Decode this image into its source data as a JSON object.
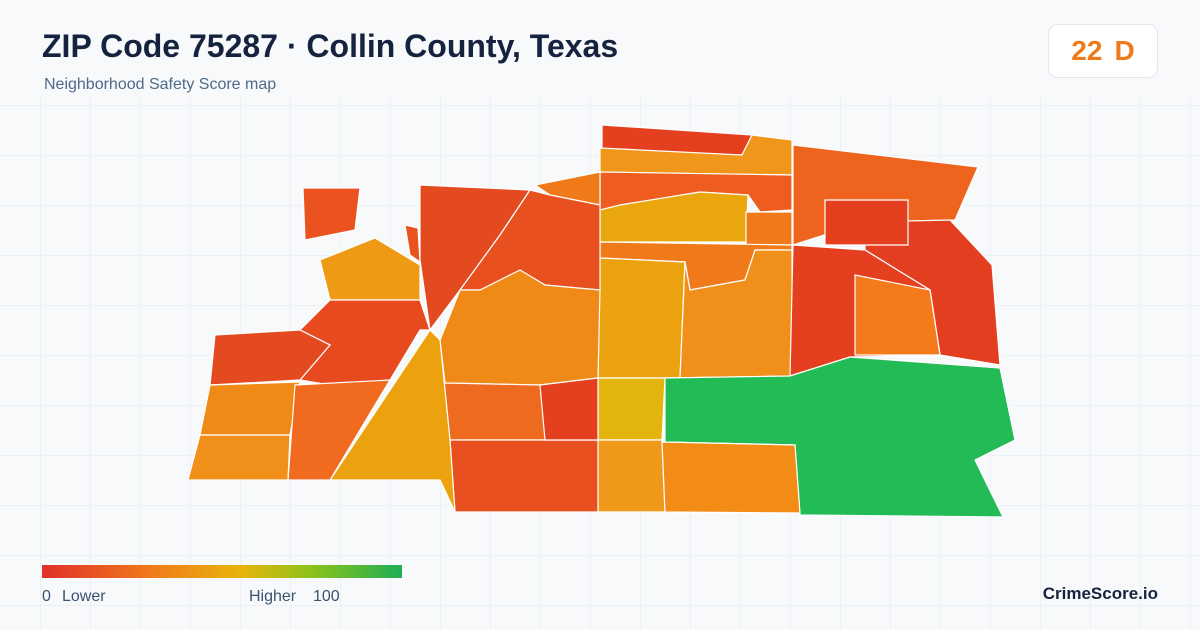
{
  "header": {
    "title": "ZIP Code 75287 · Collin County, Texas",
    "subtitle": "Neighborhood Safety Score map"
  },
  "score": {
    "value": 22,
    "grade": "D"
  },
  "legend": {
    "min": 0,
    "min_label": "Lower",
    "max_label": "Higher",
    "max": 100
  },
  "footer": {
    "brand": "CrimeScore.io"
  }
}
